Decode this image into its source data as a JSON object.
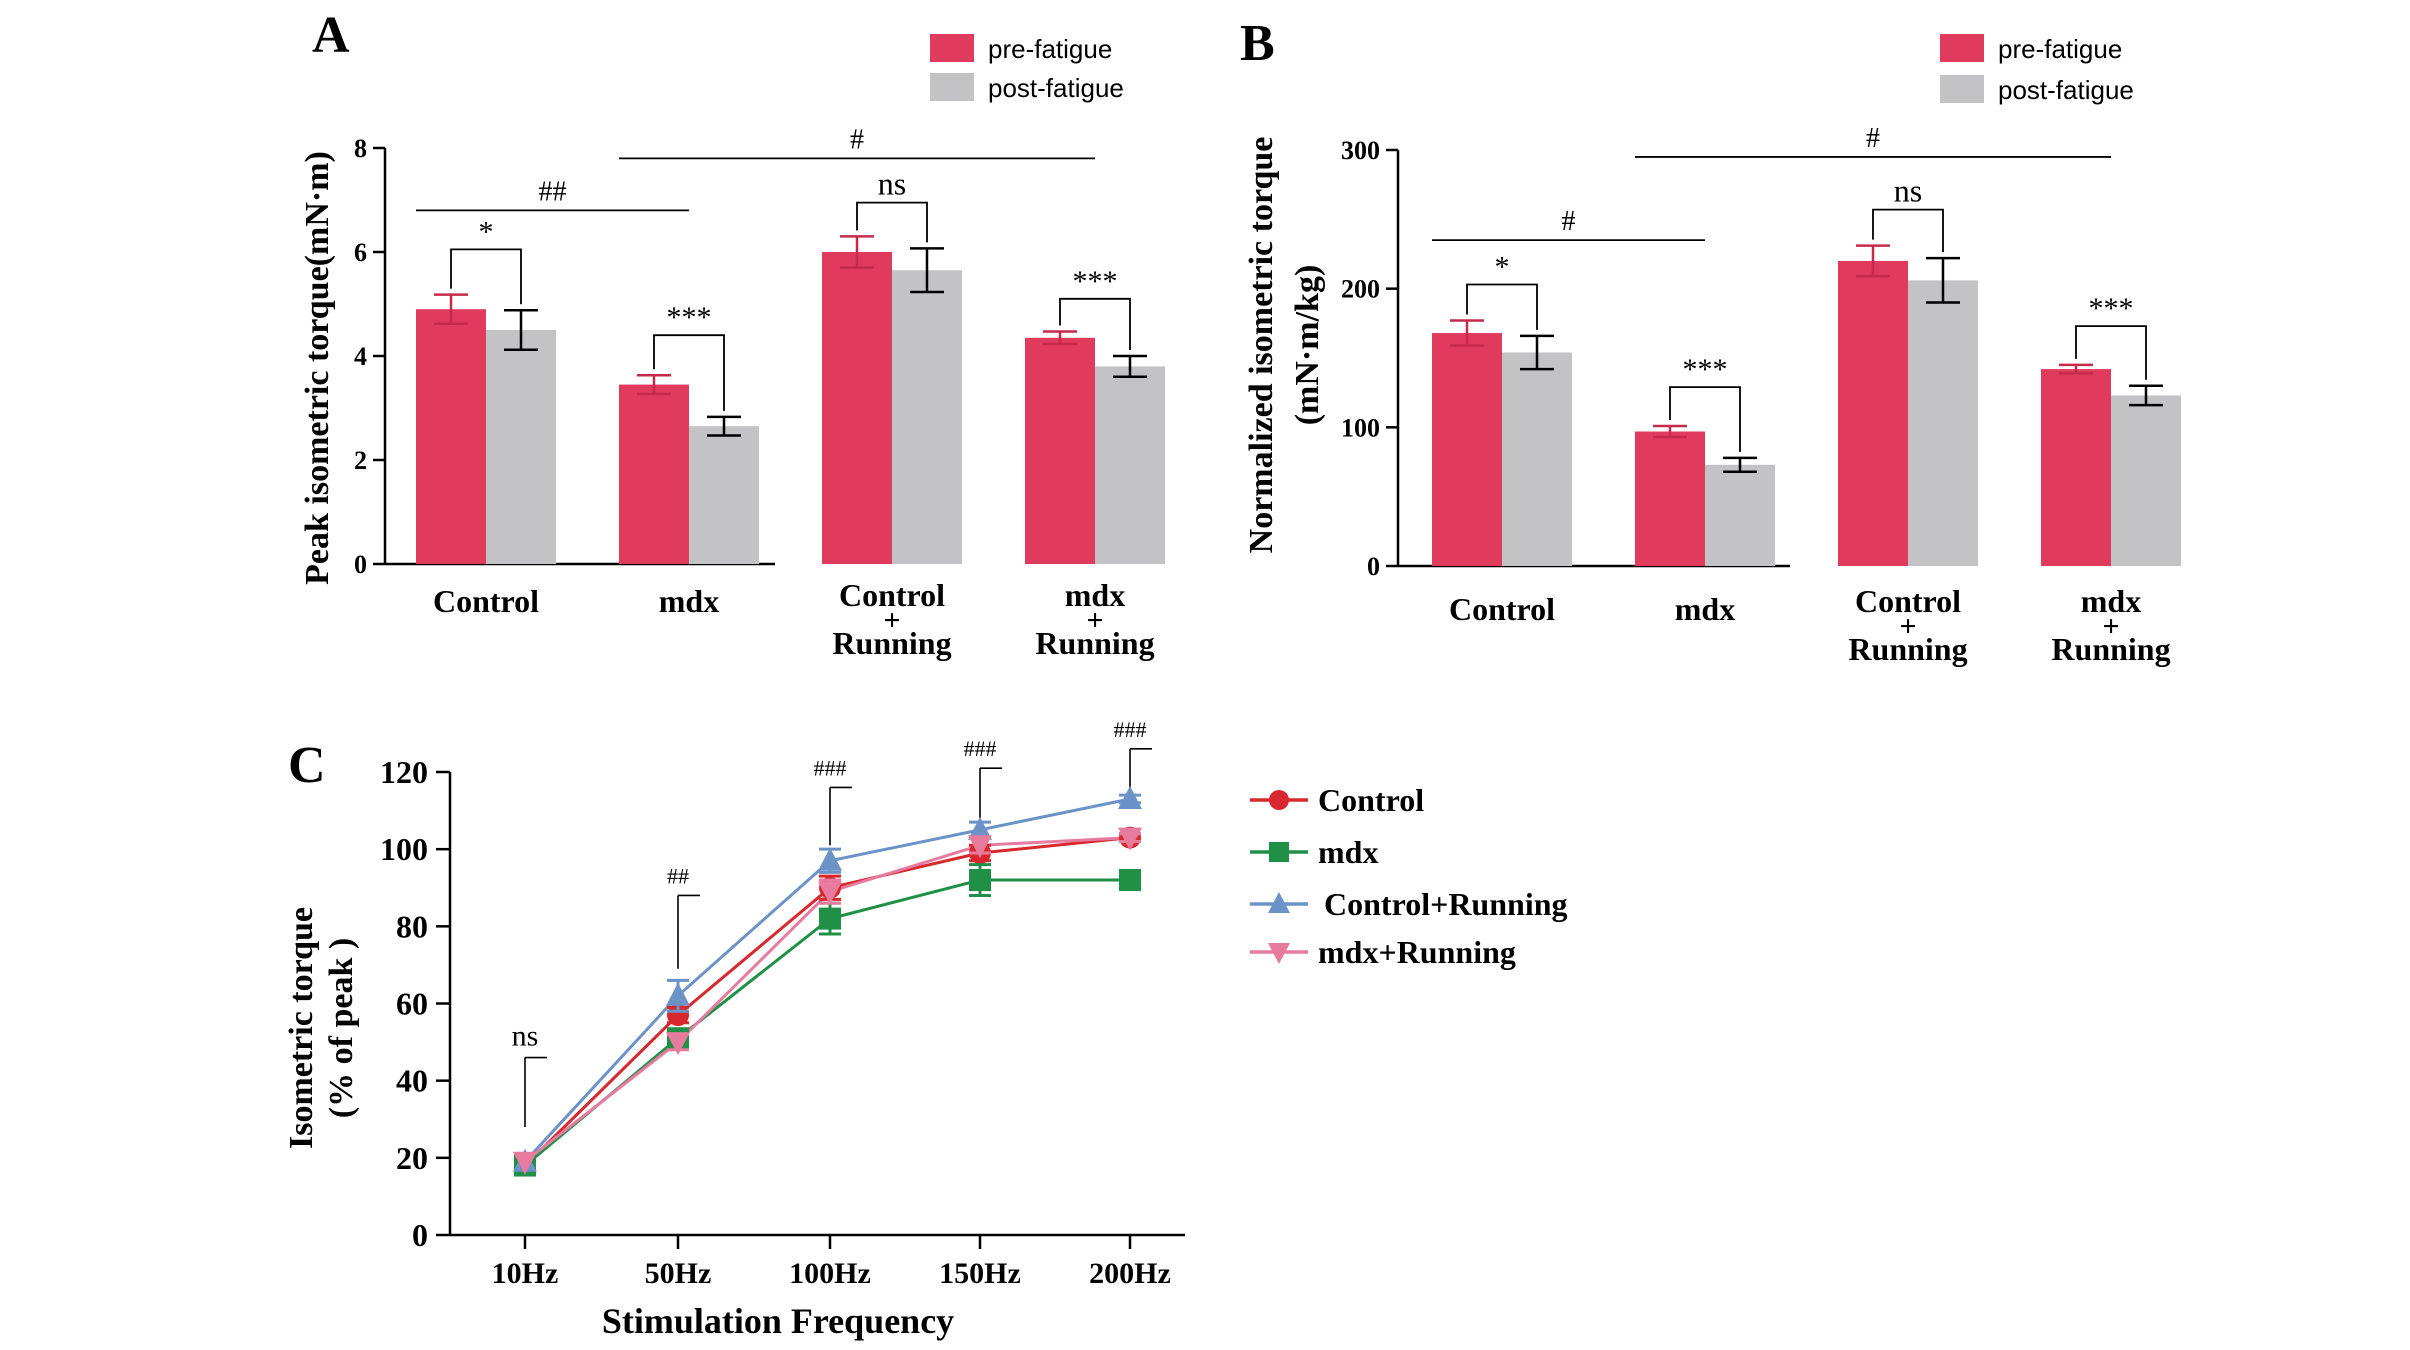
{
  "colors": {
    "pre": "#e03a5c",
    "post": "#c3c3c5",
    "control": "#d7282e",
    "mdx": "#1f9046",
    "control_running": "#6b93c8",
    "mdx_running": "#e77b9e"
  },
  "chart_data": [
    {
      "panel": "A",
      "type": "bar",
      "ylabel": "Peak isometric torque(mN·m)",
      "xlabel": "",
      "ylim": [
        0,
        8
      ],
      "yticks": [
        "0",
        "2",
        "4",
        "6",
        "8"
      ],
      "categories": [
        {
          "line1": "Control",
          "line2": "",
          "line3": ""
        },
        {
          "line1": "mdx",
          "line2": "",
          "line3": ""
        },
        {
          "line1": "Control",
          "line2": "+",
          "line3": "Running"
        },
        {
          "line1": "mdx",
          "line2": "+",
          "line3": "Running"
        }
      ],
      "legend": [
        "pre-fatigue",
        "post-fatigue"
      ],
      "legend_position": "top-right",
      "series": [
        {
          "name": "pre-fatigue",
          "values": [
            4.9,
            3.45,
            6.0,
            4.35
          ],
          "errors": [
            0.28,
            0.18,
            0.3,
            0.12
          ]
        },
        {
          "name": "post-fatigue",
          "values": [
            4.5,
            2.65,
            5.65,
            3.8
          ],
          "errors": [
            0.38,
            0.18,
            0.42,
            0.2
          ]
        }
      ],
      "annotations": [
        {
          "type": "pair",
          "group": 0,
          "label": "*",
          "height": 6.05
        },
        {
          "type": "pair",
          "group": 1,
          "label": "***",
          "height": 4.4
        },
        {
          "type": "pair",
          "group": 2,
          "label": "ns",
          "height": 6.95
        },
        {
          "type": "pair",
          "group": 3,
          "label": "***",
          "height": 5.1
        },
        {
          "type": "line",
          "from": 0,
          "to": 1,
          "label": "##",
          "height": 6.8
        },
        {
          "type": "line",
          "from": 1,
          "to": 3,
          "label": "#",
          "height": 7.8
        }
      ]
    },
    {
      "panel": "B",
      "type": "bar",
      "ylabel_line1": "Normalized isometric torque",
      "ylabel_line2": "(mN·m/kg)",
      "xlabel": "",
      "ylim": [
        0,
        300
      ],
      "yticks": [
        "0",
        "100",
        "200",
        "300"
      ],
      "categories": [
        {
          "line1": "Control",
          "line2": "",
          "line3": ""
        },
        {
          "line1": "mdx",
          "line2": "",
          "line3": ""
        },
        {
          "line1": "Control",
          "line2": "+",
          "line3": "Running"
        },
        {
          "line1": "mdx",
          "line2": "+",
          "line3": "Running"
        }
      ],
      "legend": [
        "pre-fatigue",
        "post-fatigue"
      ],
      "legend_position": "top-right",
      "series": [
        {
          "name": "pre-fatigue",
          "values": [
            168,
            97,
            220,
            142
          ],
          "errors": [
            9,
            4,
            11,
            3
          ]
        },
        {
          "name": "post-fatigue",
          "values": [
            154,
            73,
            206,
            123
          ],
          "errors": [
            12,
            5,
            16,
            7
          ]
        }
      ],
      "annotations": [
        {
          "type": "pair",
          "group": 0,
          "label": "*",
          "height": 203
        },
        {
          "type": "pair",
          "group": 1,
          "label": "***",
          "height": 129
        },
        {
          "type": "pair",
          "group": 2,
          "label": "ns",
          "height": 257
        },
        {
          "type": "pair",
          "group": 3,
          "label": "***",
          "height": 173
        },
        {
          "type": "line",
          "from": 0,
          "to": 1,
          "label": "#",
          "height": 235
        },
        {
          "type": "line",
          "from": 1,
          "to": 3,
          "label": "#",
          "height": 295
        }
      ]
    },
    {
      "panel": "C",
      "type": "line",
      "xlabel": "Stimulation Frequency",
      "ylabel_line1": "Isometric torque",
      "ylabel_line2": "(% of peak )",
      "ylim": [
        0,
        120
      ],
      "yticks": [
        "0",
        "20",
        "40",
        "60",
        "80",
        "100",
        "120"
      ],
      "categories": [
        "10Hz",
        "50Hz",
        "100Hz",
        "150Hz",
        "200Hz"
      ],
      "legend_position": "right",
      "series": [
        {
          "name": "Control",
          "marker": "circle",
          "values": [
            18,
            57,
            90,
            99,
            103
          ],
          "errors": [
            0,
            2,
            3,
            2,
            1
          ]
        },
        {
          "name": "mdx",
          "marker": "square",
          "values": [
            18,
            51,
            82,
            92,
            92
          ],
          "errors": [
            0,
            2,
            4,
            4,
            2
          ]
        },
        {
          "name": "Control+Running",
          "marker": "triangle-up",
          "values": [
            19,
            62,
            97,
            105,
            113
          ],
          "errors": [
            0,
            4,
            3,
            2,
            1
          ]
        },
        {
          "name": "mdx+Running",
          "marker": "triangle-down",
          "values": [
            19,
            50,
            89,
            101,
            103
          ],
          "errors": [
            0,
            2,
            3,
            2,
            1
          ]
        }
      ],
      "annotations": [
        {
          "x_index": 0,
          "label": "ns",
          "top": 46,
          "bottom": 28
        },
        {
          "x_index": 1,
          "label": "##",
          "top": 88,
          "bottom": 69
        },
        {
          "x_index": 2,
          "label": "###",
          "top": 116,
          "bottom": 101
        },
        {
          "x_index": 3,
          "label": "###",
          "top": 121,
          "bottom": 108
        },
        {
          "x_index": 4,
          "label": "###",
          "top": 126,
          "bottom": 114
        }
      ]
    }
  ]
}
